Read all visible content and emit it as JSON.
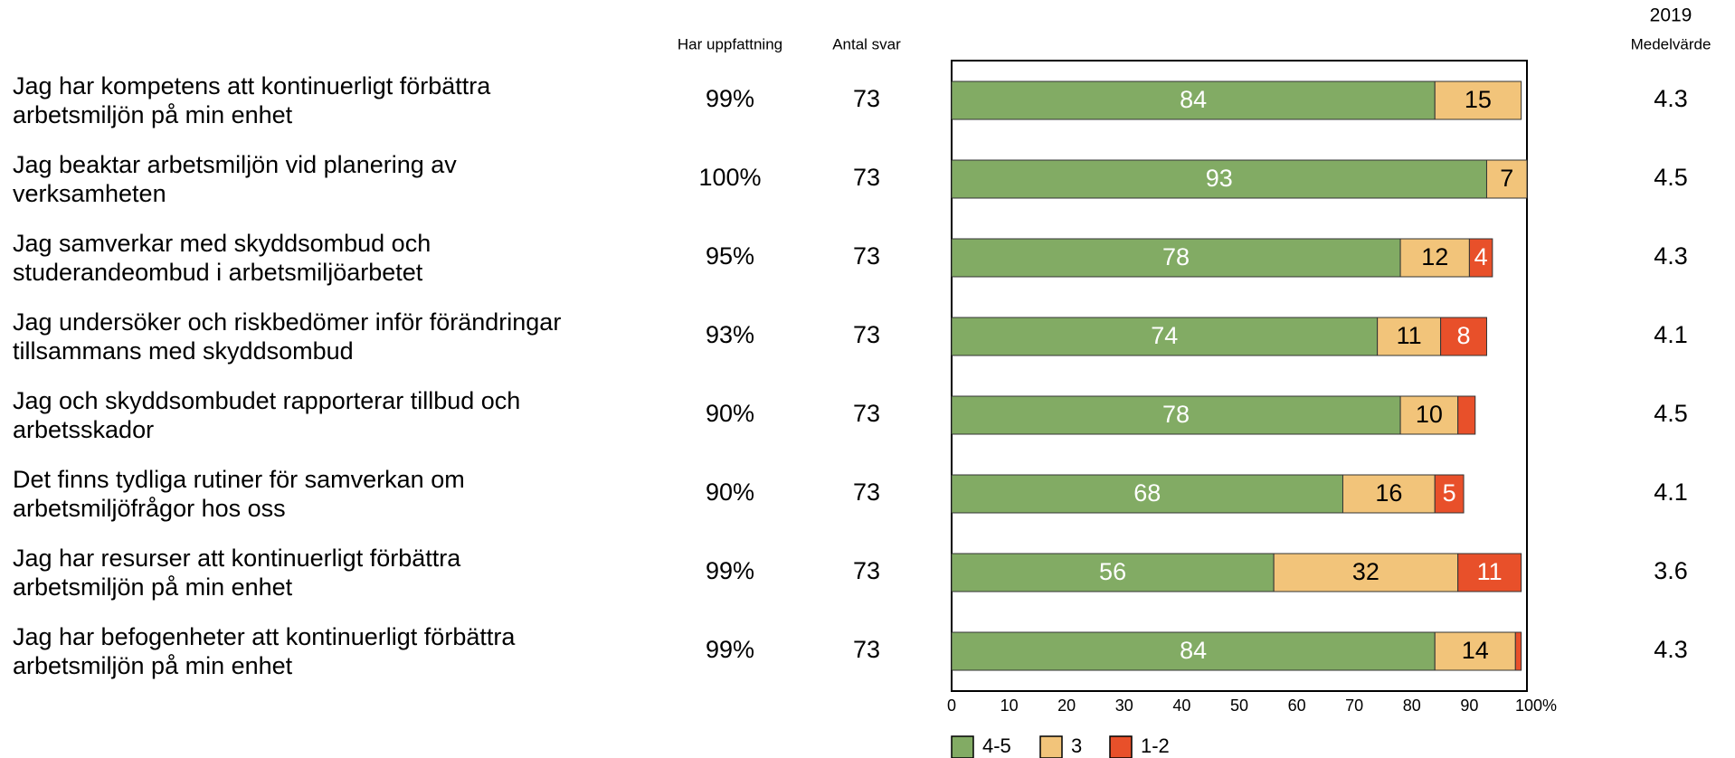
{
  "chart_data": {
    "type": "stacked_bar_horizontal",
    "categories": [
      "Jag har kompetens att kontinuerligt förbättra\narbetsmiljön på min enhet",
      "Jag beaktar arbetsmiljön vid planering av\nverksamheten",
      "Jag samverkar med skyddsombud och\nstuderandeombud i arbetsmiljöarbetet",
      "Jag undersöker och riskbedömer inför förändringar\ntillsammans med skyddsombud",
      "Jag och skyddsombudet rapporterar tillbud och\narbetsskador",
      "Det finns tydliga rutiner för samverkan om\narbetsmiljöfrågor hos oss",
      "Jag har resurser att kontinuerligt förbättra\narbetsmiljön på min enhet",
      "Jag har befogenheter att kontinuerligt förbättra\narbetsmiljön på min enhet"
    ],
    "series": [
      {
        "name": "4-5",
        "color": "#82ab64",
        "values": [
          84,
          93,
          78,
          74,
          78,
          68,
          56,
          84
        ]
      },
      {
        "name": "3",
        "color": "#f2c47a",
        "values": [
          15,
          7,
          12,
          11,
          10,
          16,
          32,
          14
        ]
      },
      {
        "name": "1-2",
        "color": "#e8502a",
        "values": [
          null,
          null,
          4,
          8,
          3,
          5,
          11,
          1
        ]
      }
    ],
    "xlim": [
      0,
      100
    ],
    "xticks": [
      0,
      10,
      20,
      30,
      40,
      50,
      60,
      70,
      80,
      90,
      {
        "value": 100,
        "label": "100%"
      }
    ],
    "columns": {
      "share": {
        "header": "Har uppfattning",
        "values": [
          "99%",
          "100%",
          "95%",
          "93%",
          "90%",
          "90%",
          "99%",
          "99%"
        ]
      },
      "count": {
        "header": "Antal svar",
        "values": [
          73,
          73,
          73,
          73,
          73,
          73,
          73,
          73
        ]
      },
      "mean": {
        "year": "2019",
        "header": "Medelvärde",
        "values": [
          4.3,
          4.5,
          4.3,
          4.1,
          4.5,
          4.1,
          3.6,
          4.3
        ]
      }
    }
  }
}
